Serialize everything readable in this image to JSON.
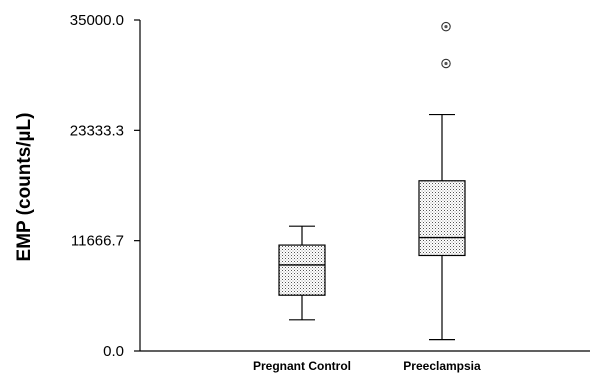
{
  "chart_data": {
    "type": "box",
    "title": "",
    "xlabel": "",
    "ylabel": "EMP (counts/µL)",
    "ylim": [
      0,
      35000
    ],
    "yticks": [
      0,
      11666.7,
      23333.3,
      35000
    ],
    "ytick_labels": [
      "0.0",
      "11666.7",
      "23333.3",
      "35000.0"
    ],
    "grid": false,
    "categories": [
      "Pregnant Control",
      "Preeclampsia"
    ],
    "boxes": [
      {
        "name": "Pregnant Control",
        "whisker_low": 3300,
        "q1": 5900,
        "median": 9100,
        "q3": 11200,
        "whisker_high": 13200,
        "outliers": []
      },
      {
        "name": "Preeclampsia",
        "whisker_low": 1200,
        "q1": 10100,
        "median": 12000,
        "q3": 18000,
        "whisker_high": 25000,
        "outliers": [
          30400,
          34300
        ]
      }
    ],
    "box_fill": "#e4e4e4",
    "outlier_marker": "circled-dot"
  }
}
